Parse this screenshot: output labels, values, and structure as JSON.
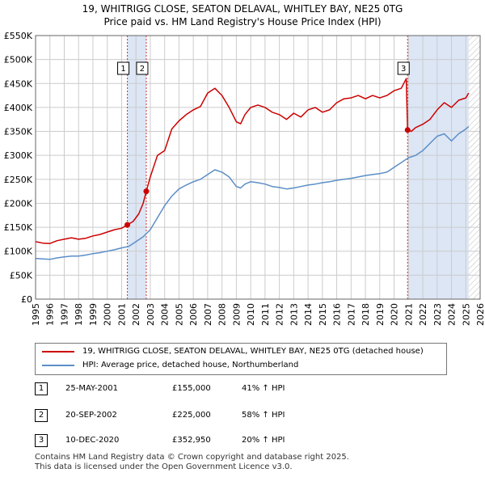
{
  "title_line1": "19, WHITRIGG CLOSE, SEATON DELAVAL, WHITLEY BAY, NE25 0TG",
  "title_line2": "Price paid vs. HM Land Registry's House Price Index (HPI)",
  "legend": {
    "property_label": "19, WHITRIGG CLOSE, SEATON DELAVAL, WHITLEY BAY, NE25 0TG (detached house)",
    "hpi_label": "HPI: Average price, detached house, Northumberland"
  },
  "transactions": [
    {
      "num": "1",
      "date": "25-MAY-2001",
      "price": "£155,000",
      "hpi": "41% ↑ HPI"
    },
    {
      "num": "2",
      "date": "20-SEP-2002",
      "price": "£225,000",
      "hpi": "58% ↑ HPI"
    },
    {
      "num": "3",
      "date": "10-DEC-2020",
      "price": "£352,950",
      "hpi": "20% ↑ HPI"
    }
  ],
  "footer": {
    "line1": "Contains HM Land Registry data © Crown copyright and database right 2025.",
    "line2": "This data is licensed under the Open Government Licence v3.0."
  },
  "colors": {
    "property": "#cc0000",
    "hpi": "#5b8ec7",
    "shade": "#dce6f5",
    "grid": "#cccccc",
    "hatch": "#bbbbbb"
  },
  "chart_data": {
    "type": "line",
    "xlim": [
      1995,
      2026
    ],
    "ylim": [
      0,
      550000
    ],
    "x_ticks": [
      1995,
      1996,
      1997,
      1998,
      1999,
      2000,
      2001,
      2002,
      2003,
      2004,
      2005,
      2006,
      2007,
      2008,
      2009,
      2010,
      2011,
      2012,
      2013,
      2014,
      2015,
      2016,
      2017,
      2018,
      2019,
      2020,
      2021,
      2022,
      2023,
      2024,
      2025,
      2026
    ],
    "y_ticks": [
      0,
      50000,
      100000,
      150000,
      200000,
      250000,
      300000,
      350000,
      400000,
      450000,
      500000,
      550000
    ],
    "y_tick_labels": [
      "£0",
      "£50K",
      "£100K",
      "£150K",
      "£200K",
      "£250K",
      "£300K",
      "£350K",
      "£400K",
      "£450K",
      "£500K",
      "£550K"
    ],
    "shaded_ranges": [
      [
        2001.4,
        2002.72
      ],
      [
        2020.94,
        2025.2
      ]
    ],
    "hatched_from": 2025.2,
    "sale_markers": [
      {
        "label": "1",
        "x": 2001.4,
        "y": 155000
      },
      {
        "label": "2",
        "x": 2002.72,
        "y": 225000
      },
      {
        "label": "3",
        "x": 2020.94,
        "y": 352950
      }
    ],
    "series": [
      {
        "name": "19, WHITRIGG CLOSE, SEATON DELAVAL, WHITLEY BAY, NE25 0TG (detached house)",
        "x": [
          1995,
          1995.5,
          1996,
          1996.5,
          1997,
          1997.5,
          1998,
          1998.5,
          1999,
          1999.5,
          2000,
          2000.5,
          2001,
          2001.4,
          2001.8,
          2002.2,
          2002.5,
          2002.72,
          2003,
          2003.5,
          2004,
          2004.5,
          2005,
          2005.5,
          2006,
          2006.5,
          2007,
          2007.5,
          2008,
          2008.5,
          2009,
          2009.3,
          2009.6,
          2010,
          2010.5,
          2011,
          2011.5,
          2012,
          2012.5,
          2013,
          2013.5,
          2014,
          2014.5,
          2015,
          2015.5,
          2016,
          2016.5,
          2017,
          2017.5,
          2018,
          2018.5,
          2019,
          2019.5,
          2020,
          2020.5,
          2020.85,
          2020.94,
          2021.2,
          2021.5,
          2022,
          2022.5,
          2023,
          2023.5,
          2024,
          2024.5,
          2025,
          2025.2
        ],
        "y": [
          120000,
          117000,
          116000,
          122000,
          125000,
          128000,
          125000,
          127000,
          132000,
          135000,
          140000,
          145000,
          148000,
          155000,
          162000,
          178000,
          200000,
          225000,
          255000,
          300000,
          310000,
          355000,
          372000,
          385000,
          395000,
          402000,
          430000,
          440000,
          425000,
          400000,
          370000,
          366000,
          385000,
          400000,
          405000,
          400000,
          390000,
          385000,
          375000,
          388000,
          380000,
          395000,
          400000,
          390000,
          395000,
          410000,
          418000,
          420000,
          425000,
          418000,
          425000,
          420000,
          425000,
          435000,
          440000,
          460000,
          352950,
          350000,
          358000,
          365000,
          375000,
          395000,
          410000,
          400000,
          415000,
          420000,
          430000
        ]
      },
      {
        "name": "HPI: Average price, detached house, Northumberland",
        "x": [
          1995,
          1995.5,
          1996,
          1996.5,
          1997,
          1997.5,
          1998,
          1998.5,
          1999,
          1999.5,
          2000,
          2000.5,
          2001,
          2001.5,
          2002,
          2002.5,
          2003,
          2003.5,
          2004,
          2004.5,
          2005,
          2005.5,
          2006,
          2006.5,
          2007,
          2007.5,
          2008,
          2008.5,
          2009,
          2009.3,
          2009.6,
          2010,
          2010.5,
          2011,
          2011.5,
          2012,
          2012.5,
          2013,
          2013.5,
          2014,
          2014.5,
          2015,
          2015.5,
          2016,
          2016.5,
          2017,
          2017.5,
          2018,
          2018.5,
          2019,
          2019.5,
          2020,
          2020.5,
          2021,
          2021.5,
          2022,
          2022.5,
          2023,
          2023.5,
          2024,
          2024.5,
          2025,
          2025.2
        ],
        "y": [
          85000,
          84000,
          83000,
          86000,
          88000,
          90000,
          90000,
          92000,
          95000,
          97000,
          100000,
          103000,
          107000,
          110000,
          120000,
          130000,
          145000,
          170000,
          195000,
          215000,
          230000,
          238000,
          245000,
          250000,
          260000,
          270000,
          265000,
          255000,
          235000,
          232000,
          240000,
          245000,
          243000,
          240000,
          235000,
          233000,
          230000,
          232000,
          235000,
          238000,
          240000,
          243000,
          245000,
          248000,
          250000,
          252000,
          255000,
          258000,
          260000,
          262000,
          265000,
          275000,
          285000,
          295000,
          300000,
          310000,
          325000,
          340000,
          345000,
          330000,
          345000,
          355000,
          360000
        ]
      }
    ]
  }
}
